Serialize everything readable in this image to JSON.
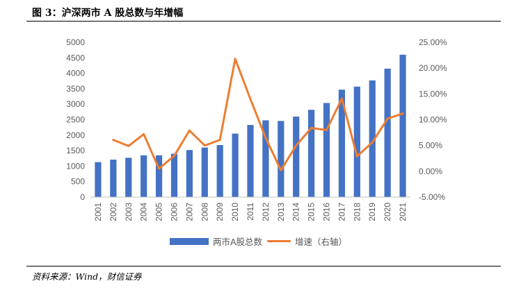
{
  "figure": {
    "title": "图 3：沪深两市 A 股总数与年增幅",
    "source": "资料来源：Wind，财信证券"
  },
  "chart_data": {
    "type": "bar",
    "categories": [
      "2001",
      "2002",
      "2003",
      "2004",
      "2005",
      "2006",
      "2007",
      "2008",
      "2009",
      "2010",
      "2011",
      "2012",
      "2013",
      "2014",
      "2015",
      "2016",
      "2017",
      "2018",
      "2019",
      "2020",
      "2021"
    ],
    "series": [
      {
        "name": "两市A股总数",
        "type": "bar",
        "axis": "left",
        "color": "#4472C4",
        "values": [
          1130,
          1210,
          1270,
          1350,
          1350,
          1400,
          1520,
          1600,
          1680,
          2050,
          2330,
          2480,
          2460,
          2600,
          2820,
          3040,
          3470,
          3570,
          3770,
          4150,
          4600
        ]
      },
      {
        "name": "增速（右轴）",
        "type": "line",
        "axis": "right",
        "color": "#ED7D31",
        "values": [
          null,
          6.1,
          4.9,
          7.2,
          0.5,
          3.0,
          7.9,
          5.0,
          6.1,
          21.8,
          14.0,
          6.5,
          0.2,
          5.0,
          8.4,
          8.0,
          14.1,
          2.9,
          5.6,
          10.2,
          11.2
        ]
      }
    ],
    "y_left": {
      "min": 0,
      "max": 5000,
      "step": 500,
      "ticks": [
        "0",
        "500",
        "1000",
        "1500",
        "2000",
        "2500",
        "3000",
        "3500",
        "4000",
        "4500",
        "5000"
      ]
    },
    "y_right": {
      "min": -5,
      "max": 25,
      "step": 5,
      "ticks": [
        "-5.00%",
        "0.00%",
        "5.00%",
        "10.00%",
        "15.00%",
        "20.00%",
        "25.00%"
      ]
    },
    "grid": false,
    "legend_position": "bottom"
  }
}
